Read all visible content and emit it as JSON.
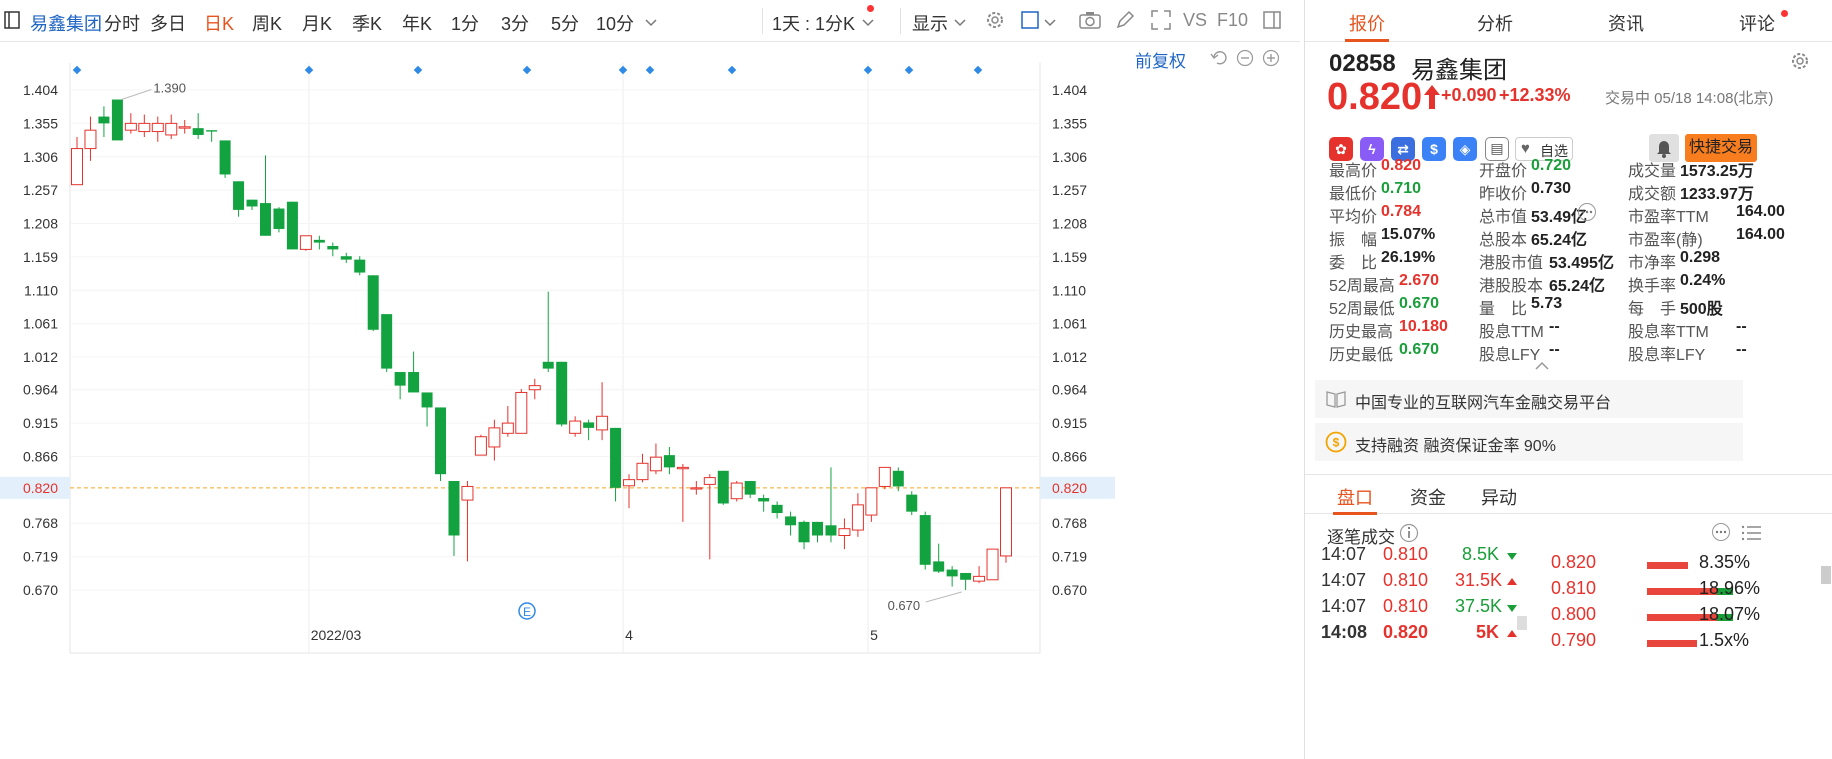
{
  "toolbar": {
    "stock_name": "易鑫集团",
    "tabs": [
      "分时",
      "多日",
      "日K",
      "周K",
      "月K",
      "季K",
      "年K",
      "1分",
      "3分",
      "5分",
      "10分"
    ],
    "active_tab": "日K",
    "period_select": "1天 : 1分K",
    "display_label": "显示",
    "vs_label": "VS",
    "f10_label": "F10"
  },
  "chart": {
    "adjust_label": "前复权",
    "y_ticks": [
      "1.404",
      "1.355",
      "1.306",
      "1.257",
      "1.208",
      "1.159",
      "1.110",
      "1.061",
      "1.012",
      "0.964",
      "0.915",
      "0.866",
      "0.820",
      "0.768",
      "0.719",
      "0.670"
    ],
    "current_price_label": "0.820",
    "x_labels": [
      "2022/03",
      "4",
      "5"
    ],
    "high_marker": "1.390",
    "low_marker": "0.670",
    "event_marker": "E",
    "up_color": "#e6322c",
    "down_color": "#12a340"
  },
  "chart_data": {
    "type": "candlestick",
    "ylim": [
      0.64,
      1.404
    ],
    "candles": [
      {
        "o": 1.265,
        "c": 1.318,
        "h": 1.335,
        "l": 1.265
      },
      {
        "o": 1.318,
        "c": 1.345,
        "h": 1.365,
        "l": 1.3
      },
      {
        "o": 1.365,
        "c": 1.355,
        "h": 1.38,
        "l": 1.335
      },
      {
        "o": 1.39,
        "c": 1.33,
        "h": 1.39,
        "l": 1.33
      },
      {
        "o": 1.345,
        "c": 1.355,
        "h": 1.37,
        "l": 1.34
      },
      {
        "o": 1.343,
        "c": 1.355,
        "h": 1.368,
        "l": 1.335
      },
      {
        "o": 1.343,
        "c": 1.355,
        "h": 1.365,
        "l": 1.328
      },
      {
        "o": 1.338,
        "c": 1.355,
        "h": 1.368,
        "l": 1.332
      },
      {
        "o": 1.348,
        "c": 1.35,
        "h": 1.36,
        "l": 1.34
      },
      {
        "o": 1.348,
        "c": 1.338,
        "h": 1.37,
        "l": 1.332
      },
      {
        "o": 1.345,
        "c": 1.343,
        "h": 1.345,
        "l": 1.328
      },
      {
        "o": 1.33,
        "c": 1.28,
        "h": 1.33,
        "l": 1.275
      },
      {
        "o": 1.27,
        "c": 1.228,
        "h": 1.27,
        "l": 1.218
      },
      {
        "o": 1.243,
        "c": 1.233,
        "h": 1.243,
        "l": 1.228
      },
      {
        "o": 1.238,
        "c": 1.19,
        "h": 1.308,
        "l": 1.19
      },
      {
        "o": 1.23,
        "c": 1.2,
        "h": 1.232,
        "l": 1.195
      },
      {
        "o": 1.24,
        "c": 1.17,
        "h": 1.24,
        "l": 1.17
      },
      {
        "o": 1.17,
        "c": 1.19,
        "h": 1.19,
        "l": 1.168
      },
      {
        "o": 1.184,
        "c": 1.18,
        "h": 1.19,
        "l": 1.17
      },
      {
        "o": 1.175,
        "c": 1.17,
        "h": 1.18,
        "l": 1.16
      },
      {
        "o": 1.16,
        "c": 1.155,
        "h": 1.165,
        "l": 1.15
      },
      {
        "o": 1.155,
        "c": 1.136,
        "h": 1.16,
        "l": 1.132
      },
      {
        "o": 1.132,
        "c": 1.052,
        "h": 1.132,
        "l": 1.05
      },
      {
        "o": 1.075,
        "c": 0.995,
        "h": 1.075,
        "l": 0.99
      },
      {
        "o": 0.99,
        "c": 0.97,
        "h": 0.99,
        "l": 0.95
      },
      {
        "o": 0.99,
        "c": 0.96,
        "h": 1.02,
        "l": 0.96
      },
      {
        "o": 0.96,
        "c": 0.938,
        "h": 0.96,
        "l": 0.91
      },
      {
        "o": 0.938,
        "c": 0.84,
        "h": 0.938,
        "l": 0.83
      },
      {
        "o": 0.83,
        "c": 0.75,
        "h": 0.83,
        "l": 0.72
      },
      {
        "o": 0.802,
        "c": 0.822,
        "h": 0.83,
        "l": 0.712
      },
      {
        "o": 0.868,
        "c": 0.895,
        "h": 0.898,
        "l": 0.87
      },
      {
        "o": 0.88,
        "c": 0.908,
        "h": 0.92,
        "l": 0.86
      },
      {
        "o": 0.9,
        "c": 0.915,
        "h": 0.94,
        "l": 0.895
      },
      {
        "o": 0.9,
        "c": 0.96,
        "h": 0.965,
        "l": 0.9
      },
      {
        "o": 0.964,
        "c": 0.97,
        "h": 0.98,
        "l": 0.95
      },
      {
        "o": 1.005,
        "c": 0.995,
        "h": 1.108,
        "l": 0.99
      },
      {
        "o": 1.005,
        "c": 0.913,
        "h": 1.005,
        "l": 0.91
      },
      {
        "o": 0.9,
        "c": 0.918,
        "h": 0.925,
        "l": 0.895
      },
      {
        "o": 0.916,
        "c": 0.908,
        "h": 0.92,
        "l": 0.89
      },
      {
        "o": 0.905,
        "c": 0.925,
        "h": 0.975,
        "l": 0.89
      },
      {
        "o": 0.908,
        "c": 0.82,
        "h": 0.908,
        "l": 0.8
      },
      {
        "o": 0.823,
        "c": 0.832,
        "h": 0.84,
        "l": 0.79
      },
      {
        "o": 0.832,
        "c": 0.856,
        "h": 0.87,
        "l": 0.828
      },
      {
        "o": 0.845,
        "c": 0.865,
        "h": 0.885,
        "l": 0.84
      },
      {
        "o": 0.868,
        "c": 0.85,
        "h": 0.88,
        "l": 0.84
      },
      {
        "o": 0.848,
        "c": 0.85,
        "h": 0.855,
        "l": 0.77
      },
      {
        "o": 0.82,
        "c": 0.82,
        "h": 0.83,
        "l": 0.81
      },
      {
        "o": 0.825,
        "c": 0.835,
        "h": 0.84,
        "l": 0.715
      },
      {
        "o": 0.845,
        "c": 0.797,
        "h": 0.845,
        "l": 0.795
      },
      {
        "o": 0.804,
        "c": 0.827,
        "h": 0.83,
        "l": 0.8
      },
      {
        "o": 0.83,
        "c": 0.81,
        "h": 0.83,
        "l": 0.805
      },
      {
        "o": 0.805,
        "c": 0.8,
        "h": 0.81,
        "l": 0.785
      },
      {
        "o": 0.795,
        "c": 0.783,
        "h": 0.8,
        "l": 0.775
      },
      {
        "o": 0.778,
        "c": 0.765,
        "h": 0.785,
        "l": 0.75
      },
      {
        "o": 0.77,
        "c": 0.74,
        "h": 0.772,
        "l": 0.73
      },
      {
        "o": 0.77,
        "c": 0.75,
        "h": 0.77,
        "l": 0.74
      },
      {
        "o": 0.765,
        "c": 0.75,
        "h": 0.85,
        "l": 0.74
      },
      {
        "o": 0.75,
        "c": 0.76,
        "h": 0.775,
        "l": 0.73
      },
      {
        "o": 0.758,
        "c": 0.795,
        "h": 0.812,
        "l": 0.748
      },
      {
        "o": 0.78,
        "c": 0.82,
        "h": 0.82,
        "l": 0.77
      },
      {
        "o": 0.822,
        "c": 0.85,
        "h": 0.85,
        "l": 0.818
      },
      {
        "o": 0.845,
        "c": 0.822,
        "h": 0.85,
        "l": 0.815
      },
      {
        "o": 0.81,
        "c": 0.785,
        "h": 0.815,
        "l": 0.78
      },
      {
        "o": 0.78,
        "c": 0.707,
        "h": 0.785,
        "l": 0.7
      },
      {
        "o": 0.712,
        "c": 0.697,
        "h": 0.738,
        "l": 0.695
      },
      {
        "o": 0.7,
        "c": 0.69,
        "h": 0.705,
        "l": 0.675
      },
      {
        "o": 0.695,
        "c": 0.685,
        "h": 0.695,
        "l": 0.67
      },
      {
        "o": 0.683,
        "c": 0.69,
        "h": 0.705,
        "l": 0.68
      },
      {
        "o": 0.685,
        "c": 0.73,
        "h": 0.73,
        "l": 0.685
      },
      {
        "o": 0.72,
        "c": 0.82,
        "h": 0.82,
        "l": 0.71
      }
    ]
  },
  "quote": {
    "tabs": [
      "报价",
      "分析",
      "资讯",
      "评论"
    ],
    "active_tab": "报价",
    "code": "02858",
    "name": "易鑫集团",
    "price": "0.820",
    "change": "+0.090",
    "change_pct": "+12.33%",
    "status": "交易中 05/18 14:08(北京)",
    "watch_label": "自选",
    "quick_trade_label": "快捷交易",
    "fields": [
      {
        "label": "最高价",
        "value": "0.820",
        "color": "red"
      },
      {
        "label": "开盘价",
        "value": "0.720",
        "color": "green"
      },
      {
        "label": "成交量",
        "value": "1573.25万",
        "color": ""
      },
      {
        "label": "最低价",
        "value": "0.710",
        "color": "green"
      },
      {
        "label": "昨收价",
        "value": "0.730",
        "color": ""
      },
      {
        "label": "成交额",
        "value": "1233.97万",
        "color": ""
      },
      {
        "label": "平均价",
        "value": "0.784",
        "color": "red"
      },
      {
        "label": "总市值",
        "value": "53.49亿",
        "color": ""
      },
      {
        "label": "市盈率TTM",
        "value": "164.00",
        "color": ""
      },
      {
        "label": "振　幅",
        "value": "15.07%",
        "color": ""
      },
      {
        "label": "总股本",
        "value": "65.24亿",
        "color": ""
      },
      {
        "label": "市盈率(静)",
        "value": "164.00",
        "color": ""
      },
      {
        "label": "委　比",
        "value": "26.19%",
        "color": ""
      },
      {
        "label": "港股市值",
        "value": "53.495亿",
        "color": ""
      },
      {
        "label": "市净率",
        "value": "0.298",
        "color": ""
      },
      {
        "label": "52周最高",
        "value": "2.670",
        "color": "red"
      },
      {
        "label": "港股股本",
        "value": "65.24亿",
        "color": ""
      },
      {
        "label": "换手率",
        "value": "0.24%",
        "color": ""
      },
      {
        "label": "52周最低",
        "value": "0.670",
        "color": "green"
      },
      {
        "label": "量　比",
        "value": "5.73",
        "color": ""
      },
      {
        "label": "每　手",
        "value": "500股",
        "color": ""
      },
      {
        "label": "历史最高",
        "value": "10.180",
        "color": "red"
      },
      {
        "label": "股息TTM",
        "value": "--",
        "color": ""
      },
      {
        "label": "股息率TTM",
        "value": "--",
        "color": ""
      },
      {
        "label": "历史最低",
        "value": "0.670",
        "color": "green"
      },
      {
        "label": "股息LFY",
        "value": "--",
        "color": ""
      },
      {
        "label": "股息率LFY",
        "value": "--",
        "color": ""
      }
    ],
    "description": "中国专业的互联网汽车金融交易平台",
    "margin_info": "支持融资 融资保证金率 90%"
  },
  "panel": {
    "tabs": [
      "盘口",
      "资金",
      "异动"
    ],
    "active_tab": "盘口",
    "trades_title": "逐笔成交",
    "trades": [
      {
        "time": "14:07",
        "price": "0.810",
        "vol": "8.5K",
        "dir": "down"
      },
      {
        "time": "14:07",
        "price": "0.810",
        "vol": "31.5K",
        "dir": "up"
      },
      {
        "time": "14:07",
        "price": "0.810",
        "vol": "37.5K",
        "dir": "down"
      },
      {
        "time": "14:08",
        "price": "0.820",
        "vol": "5K",
        "dir": "up"
      }
    ],
    "book": [
      {
        "price": "0.820",
        "pct": "8.35%",
        "fill": 0.45
      },
      {
        "price": "0.810",
        "pct": "18.96%",
        "fill": 0.75
      },
      {
        "price": "0.800",
        "pct": "18.07%",
        "fill": 0.75
      },
      {
        "price": "0.790",
        "pct": "1.5x%",
        "fill": 0.55
      }
    ]
  }
}
